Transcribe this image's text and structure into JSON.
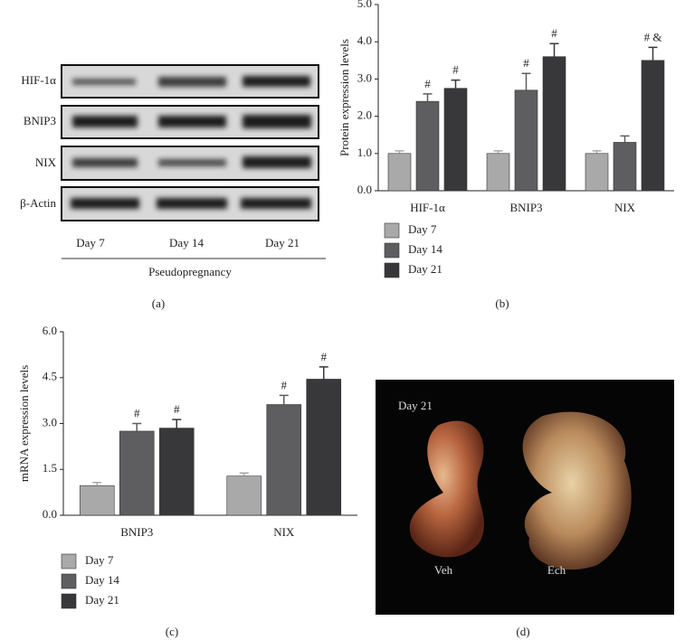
{
  "chart_data": [
    {
      "type": "bar",
      "panel": "(b)",
      "ylabel": "Protein expression levels",
      "categories": [
        "HIF-1α",
        "BNIP3",
        "NIX"
      ],
      "series": [
        {
          "name": "Day 7",
          "color": "#a9a9a9",
          "values": [
            1.0,
            1.0,
            1.0
          ],
          "errors": [
            0.07,
            0.07,
            0.07
          ],
          "annotations": [
            null,
            null,
            null
          ]
        },
        {
          "name": "Day 14",
          "color": "#5e5e60",
          "values": [
            2.4,
            2.7,
            1.3
          ],
          "errors": [
            0.2,
            0.45,
            0.17
          ],
          "annotations": [
            "#",
            "#",
            null
          ]
        },
        {
          "name": "Day 21",
          "color": "#38383a",
          "values": [
            2.75,
            3.6,
            3.5
          ],
          "errors": [
            0.22,
            0.35,
            0.35
          ],
          "annotations": [
            "#",
            "#",
            "# &"
          ]
        }
      ],
      "ylim": [
        0,
        5
      ],
      "yticks": [
        {
          "value": 0,
          "label": "0.0"
        },
        {
          "value": 1,
          "label": "1.0"
        },
        {
          "value": 2,
          "label": "2.0"
        },
        {
          "value": 3,
          "label": "3.0"
        },
        {
          "value": 4,
          "label": "4.0"
        },
        {
          "value": 5,
          "label": "5.0"
        }
      ]
    },
    {
      "type": "bar",
      "panel": "(c)",
      "ylabel": "mRNA expression levels",
      "categories": [
        "BNIP3",
        "NIX"
      ],
      "series": [
        {
          "name": "Day 7",
          "color": "#a9a9a9",
          "values": [
            0.97,
            1.28
          ],
          "errors": [
            0.1,
            0.1
          ],
          "annotations": [
            null,
            null
          ]
        },
        {
          "name": "Day 14",
          "color": "#5e5e60",
          "values": [
            2.75,
            3.62
          ],
          "errors": [
            0.25,
            0.3
          ],
          "annotations": [
            "#",
            "#"
          ]
        },
        {
          "name": "Day 21",
          "color": "#38383a",
          "values": [
            2.85,
            4.45
          ],
          "errors": [
            0.28,
            0.4
          ],
          "annotations": [
            "#",
            "#"
          ]
        }
      ],
      "ylim": [
        0,
        6
      ],
      "yticks": [
        {
          "value": 0,
          "label": "0.0"
        },
        {
          "value": 1.5,
          "label": "1.5"
        },
        {
          "value": 3,
          "label": "3.0"
        },
        {
          "value": 4.5,
          "label": "4.5"
        },
        {
          "value": 6,
          "label": "6.0"
        }
      ]
    }
  ],
  "blot": {
    "panel": "(a)",
    "rows": [
      "HIF-1α",
      "BNIP3",
      "NIX",
      "β-Actin"
    ],
    "lanes": [
      "Day 7",
      "Day 14",
      "Day 21"
    ],
    "group": "Pseudopregnancy"
  },
  "photo": {
    "panel": "(d)",
    "title": "Day 21",
    "left": "Veh",
    "right": "Ech"
  }
}
